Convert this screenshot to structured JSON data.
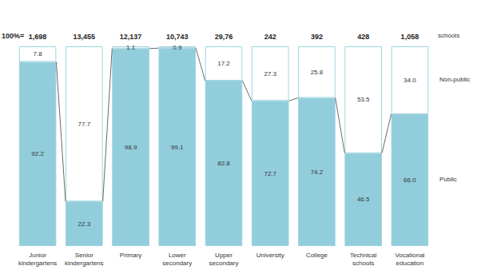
{
  "chart_data": {
    "type": "bar",
    "stacked": true,
    "data_labels": true,
    "tick_labels": "x",
    "categories": [
      "Junior\nkindergartens",
      "Senior\nkindergartens",
      "Primary",
      "Lower\nsecondary",
      "Upper\nsecondary",
      "University",
      "College",
      "Technical\nschools",
      "Vocational\neducation"
    ],
    "ylim": [
      0,
      100
    ],
    "series": [
      {
        "name": "Public",
        "color": "#92cddc",
        "values": [
          92.2,
          22.3,
          98.9,
          99.1,
          82.8,
          72.7,
          74.2,
          46.5,
          66.0
        ],
        "value_labels": [
          "92.2",
          "22.3",
          "98.9",
          "99.1",
          "82.8",
          "72.7",
          "74.2",
          "46.5",
          "66.0"
        ]
      },
      {
        "name": "Non-public",
        "color": "#ffffff",
        "values": [
          7.8,
          77.7,
          1.1,
          0.9,
          17.2,
          27.3,
          25.8,
          53.5,
          34.0
        ],
        "value_labels": [
          "7.8",
          "77.7",
          "1.1",
          "0.9",
          "17.2",
          "27.3",
          "25.8",
          "53.5",
          "34.0"
        ]
      }
    ],
    "annotations": {
      "header": "100%=",
      "unit": "schools",
      "totals": [
        "1,698",
        "13,455",
        "12,137",
        "10,743",
        "29,76",
        "242",
        "392",
        "428",
        "1,058"
      ]
    }
  }
}
